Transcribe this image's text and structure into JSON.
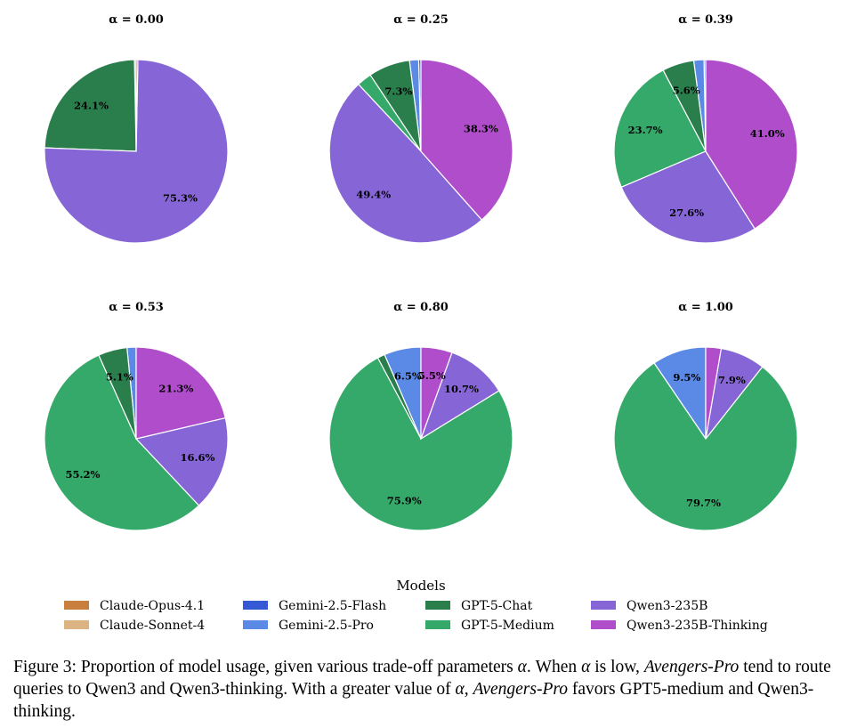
{
  "chart_data": {
    "type": "pie",
    "models": [
      {
        "name": "Claude-Opus-4.1",
        "color": "#c87f3d"
      },
      {
        "name": "Claude-Sonnet-4",
        "color": "#dcb483"
      },
      {
        "name": "Gemini-2.5-Flash",
        "color": "#3558d6"
      },
      {
        "name": "Gemini-2.5-Pro",
        "color": "#5b8ae6"
      },
      {
        "name": "GPT-5-Chat",
        "color": "#2a7e4c"
      },
      {
        "name": "GPT-5-Medium",
        "color": "#35a96a"
      },
      {
        "name": "Qwen3-235B",
        "color": "#8666d6"
      },
      {
        "name": "Qwen3-235B-Thinking",
        "color": "#b04dca"
      }
    ],
    "legend_title": "Models",
    "legend_placement": "bottom",
    "pies": [
      {
        "title": "α = 0.00",
        "values": [
          0.0,
          0.3,
          0.0,
          0.0,
          24.1,
          0.0,
          75.3,
          0.3
        ],
        "labels": [
          "",
          "",
          "",
          "",
          "24.1%",
          "",
          "75.3%",
          ""
        ]
      },
      {
        "title": "α = 0.25",
        "values": [
          0.0,
          0.0,
          0.4,
          1.6,
          7.3,
          2.6,
          49.4,
          38.3
        ],
        "labels": [
          "",
          "",
          "",
          "",
          "7.3%",
          "",
          "49.4%",
          "38.3%"
        ]
      },
      {
        "title": "α = 0.39",
        "values": [
          0.0,
          0.0,
          0.3,
          1.8,
          5.6,
          23.7,
          27.6,
          41.0
        ],
        "labels": [
          "",
          "",
          "",
          "",
          "5.6%",
          "23.7%",
          "27.6%",
          "41.0%"
        ]
      },
      {
        "title": "α = 0.53",
        "values": [
          0.0,
          0.0,
          0.0,
          1.6,
          5.1,
          55.2,
          16.6,
          21.3
        ],
        "labels": [
          "",
          "",
          "",
          "",
          "5.1%",
          "55.2%",
          "16.6%",
          "21.3%"
        ]
      },
      {
        "title": "α = 0.80",
        "values": [
          0.0,
          0.0,
          0.0,
          6.5,
          1.3,
          75.9,
          10.7,
          5.5
        ],
        "labels": [
          "",
          "",
          "",
          "6.5%",
          "",
          "75.9%",
          "10.7%",
          "5.5%"
        ]
      },
      {
        "title": "α = 1.00",
        "values": [
          0.0,
          0.0,
          0.0,
          9.5,
          0.0,
          79.7,
          7.9,
          2.7
        ],
        "labels": [
          "",
          "",
          "",
          "9.5%",
          "",
          "79.7%",
          "7.9%",
          ""
        ]
      }
    ]
  },
  "caption": {
    "prefix": "Figure 3: Proportion of model usage, given various trade-off parameters ",
    "alpha_symbol": "α",
    "part2": ". When ",
    "part3": " is low, ",
    "emph1": "Avengers-Pro",
    "part4": " tend to route queries to Qwen3 and Qwen3-thinking. With a greater value of ",
    "part5": ", ",
    "emph2": "Avengers-Pro",
    "part6": " favors GPT5-medium and Qwen3-thinking."
  }
}
